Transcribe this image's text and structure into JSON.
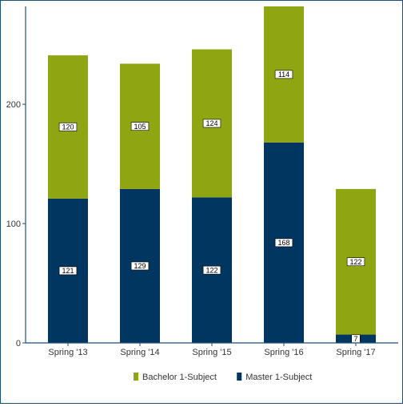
{
  "chart_data": {
    "type": "bar",
    "stacked": true,
    "categories": [
      "Spring '13",
      "Spring '14",
      "Spring '15",
      "Spring '16",
      "Spring '17"
    ],
    "series": [
      {
        "name": "Master 1-Subject",
        "values": [
          121,
          129,
          122,
          168,
          7
        ],
        "color": "#003660"
      },
      {
        "name": "Bachelor 1-Subject",
        "values": [
          120,
          105,
          124,
          114,
          122
        ],
        "color": "#8fa612"
      }
    ],
    "y_ticks": [
      "0",
      "100",
      "200"
    ],
    "ylim": [
      0,
      282
    ],
    "legend_position": "bottom",
    "grid": false,
    "axis_color": "#1f4e79"
  }
}
